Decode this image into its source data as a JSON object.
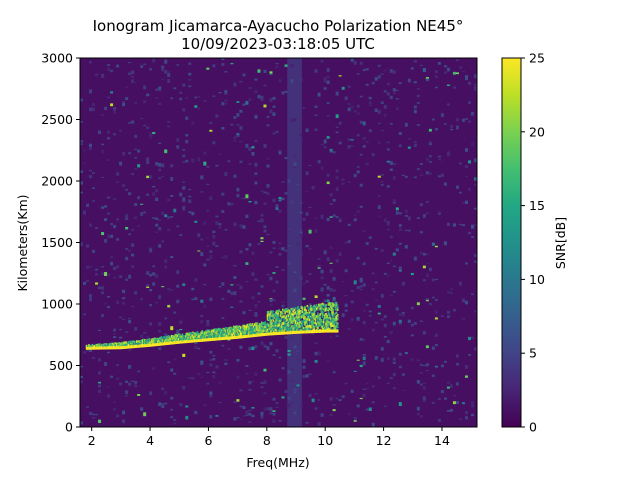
{
  "chart_data": {
    "type": "heatmap",
    "title": "Ionogram Jicamarca-Ayacucho Polarization NE45°",
    "subtitle": "10/09/2023-03:18:05 UTC",
    "xlabel": "Freq(MHz)",
    "ylabel": "Kilometers(Km)",
    "xlim": [
      1.6,
      15.2
    ],
    "ylim": [
      0,
      3000
    ],
    "x_ticks": [
      2,
      4,
      6,
      8,
      10,
      12,
      14
    ],
    "y_ticks": [
      0,
      500,
      1000,
      1500,
      2000,
      2500,
      3000
    ],
    "colorbar": {
      "label": "SNR[dB]",
      "range": [
        0,
        25
      ],
      "ticks": [
        0,
        5,
        10,
        15,
        20,
        25
      ],
      "colormap": "viridis"
    },
    "trace": {
      "points": [
        {
          "freq": 1.8,
          "range": 640
        },
        {
          "freq": 3.0,
          "range": 645
        },
        {
          "freq": 4.0,
          "range": 665
        },
        {
          "freq": 5.0,
          "range": 690
        },
        {
          "freq": 6.0,
          "range": 710
        },
        {
          "freq": 7.0,
          "range": 730
        },
        {
          "freq": 8.0,
          "range": 755
        },
        {
          "freq": 9.0,
          "range": 770
        },
        {
          "freq": 10.0,
          "range": 780
        },
        {
          "freq": 10.4,
          "range": 780
        }
      ],
      "snr_db": 25
    },
    "interference_bands": [
      {
        "from_freq": 8.7,
        "to_freq": 9.2,
        "snr_db": 4
      }
    ],
    "background_snr_db": 1,
    "grid": false
  }
}
